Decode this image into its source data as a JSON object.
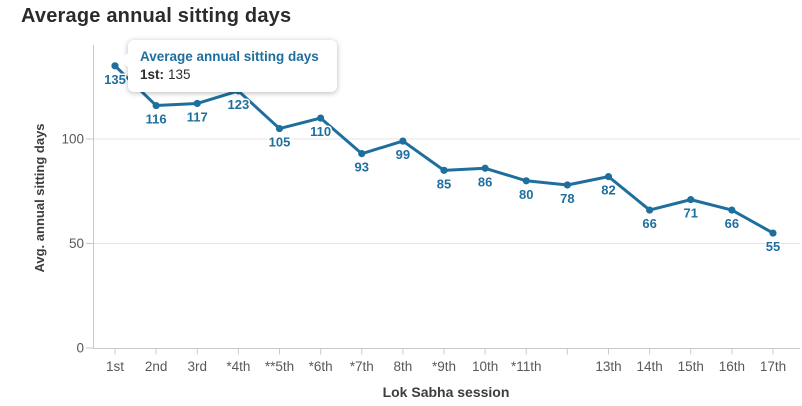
{
  "title": "Average annual sitting days",
  "tooltip": {
    "title": "Average annual sitting days",
    "label": "1st:",
    "value": "135"
  },
  "colors": {
    "line": "#1f6f9e",
    "data_label": "#1f6f9e",
    "tooltip_title": "#1f6f9e",
    "tooltip_text": "#2e2e2e",
    "axis_line": "#c9c9c9",
    "grid_line": "#e4e4e4",
    "tick_label": "#595959",
    "axis_title": "#3d3d3d",
    "page_title": "#2b2b2b"
  },
  "chart_data": {
    "type": "line",
    "title": "Average annual sitting days",
    "xlabel": "Lok Sabha session",
    "ylabel": "Avg. annual sitting days",
    "categories": [
      "1st",
      "2nd",
      "3rd",
      "*4th",
      "**5th",
      "*6th",
      "*7th",
      "8th",
      "*9th",
      "10th",
      "*11th",
      "",
      "13th",
      "14th",
      "15th",
      "16th",
      "17th"
    ],
    "series": [
      {
        "name": "Average annual sitting days",
        "values": [
          135,
          116,
          117,
          123,
          105,
          110,
          93,
          99,
          85,
          86,
          80,
          78,
          82,
          66,
          71,
          66,
          55
        ]
      }
    ],
    "yticks": [
      0,
      50,
      100
    ],
    "ylim": [
      0,
      145
    ],
    "grid": "horizontal",
    "legend": "none",
    "data_labels": true
  }
}
